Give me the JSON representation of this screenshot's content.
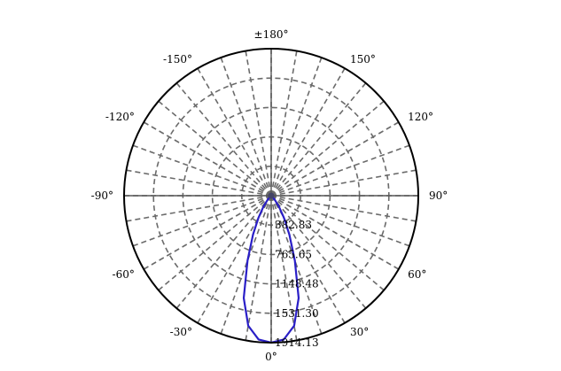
{
  "chart_data": {
    "type": "polar-line",
    "angle_zero": "bottom",
    "angle_step_deg": 30,
    "radial_max": 1914.13,
    "angle_labels": [
      {
        "angle": 0,
        "text": "0°"
      },
      {
        "angle": 30,
        "text": "30°"
      },
      {
        "angle": 60,
        "text": "60°"
      },
      {
        "angle": 90,
        "text": "90°"
      },
      {
        "angle": 120,
        "text": "120°"
      },
      {
        "angle": 150,
        "text": "150°"
      },
      {
        "angle": 180,
        "text": "±180°"
      },
      {
        "angle": -150,
        "text": "-150°"
      },
      {
        "angle": -120,
        "text": "-120°"
      },
      {
        "angle": -90,
        "text": "-90°"
      },
      {
        "angle": -60,
        "text": "-60°"
      },
      {
        "angle": -30,
        "text": "-30°"
      }
    ],
    "radial_ticks": [
      {
        "value": 382.83,
        "text": "382.83"
      },
      {
        "value": 765.65,
        "text": "765.65"
      },
      {
        "value": 1148.48,
        "text": "1148.48"
      },
      {
        "value": 1531.3,
        "text": "1531.30"
      },
      {
        "value": 1914.13,
        "text": "1914.13"
      }
    ],
    "grid": true,
    "series": [
      {
        "color": "#2a1fc7",
        "points": [
          {
            "angle": -90,
            "r": 0
          },
          {
            "angle": -60,
            "r": 10
          },
          {
            "angle": -45,
            "r": 30
          },
          {
            "angle": -40,
            "r": 80
          },
          {
            "angle": -35,
            "r": 180
          },
          {
            "angle": -30,
            "r": 330
          },
          {
            "angle": -25,
            "r": 560
          },
          {
            "angle": -20,
            "r": 900
          },
          {
            "angle": -15,
            "r": 1380
          },
          {
            "angle": -10,
            "r": 1720
          },
          {
            "angle": -5,
            "r": 1880
          },
          {
            "angle": 0,
            "r": 1914.13
          },
          {
            "angle": 5,
            "r": 1880
          },
          {
            "angle": 10,
            "r": 1720
          },
          {
            "angle": 15,
            "r": 1380
          },
          {
            "angle": 20,
            "r": 900
          },
          {
            "angle": 25,
            "r": 560
          },
          {
            "angle": 30,
            "r": 330
          },
          {
            "angle": 35,
            "r": 180
          },
          {
            "angle": 40,
            "r": 80
          },
          {
            "angle": 45,
            "r": 30
          },
          {
            "angle": 60,
            "r": 10
          },
          {
            "angle": 90,
            "r": 0
          }
        ]
      }
    ]
  }
}
